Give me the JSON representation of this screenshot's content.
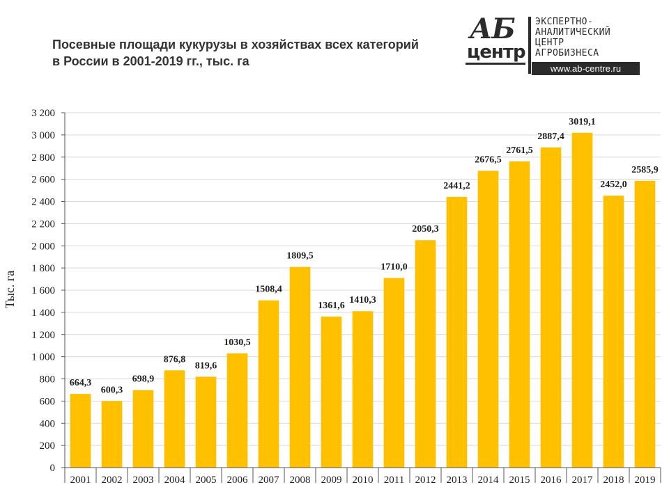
{
  "title_lines": [
    "Посевные площади кукурузы в хозяйствах всех категорий",
    "в России в 2001-2019 гг., тыс. га"
  ],
  "logo": {
    "mark_top": "АБ",
    "mark_bottom": "центр",
    "text_lines": [
      "ЭКСПЕРТНО-",
      "АНАЛИТИЧЕСКИЙ",
      "ЦЕНТР",
      "АГРОБИЗНЕСА"
    ],
    "url": "www.ab-centre.ru"
  },
  "colors": {
    "bar": "#FFC000",
    "grid": "#D9D9D9",
    "axis": "#555555",
    "text": "#222222"
  },
  "chart_data": {
    "type": "bar",
    "title": "Посевные площади кукурузы в хозяйствах всех категорий в России в 2001-2019 гг., тыс. га",
    "ylabel": "Тыс. га",
    "xlabel": "",
    "ylim": [
      0,
      3200
    ],
    "yticks": [
      0,
      200,
      400,
      600,
      800,
      1000,
      1200,
      1400,
      1600,
      1800,
      2000,
      2200,
      2400,
      2600,
      2800,
      3000,
      3200
    ],
    "ytick_labels": [
      "0",
      "200",
      "400",
      "600",
      "800",
      "1 000",
      "1 200",
      "1 400",
      "1 600",
      "1 800",
      "2 000",
      "2 200",
      "2 400",
      "2 600",
      "2 800",
      "3 000",
      "3 200"
    ],
    "grid": true,
    "categories": [
      "2001",
      "2002",
      "2003",
      "2004",
      "2005",
      "2006",
      "2007",
      "2008",
      "2009",
      "2010",
      "2011",
      "2012",
      "2013",
      "2014",
      "2015",
      "2016",
      "2017",
      "2018",
      "2019"
    ],
    "values": [
      664.3,
      600.3,
      698.9,
      876.8,
      819.6,
      1030.5,
      1508.4,
      1809.5,
      1361.6,
      1410.3,
      1710.0,
      2050.3,
      2441.2,
      2676.5,
      2761.5,
      2887.4,
      3019.1,
      2452.0,
      2585.9
    ],
    "value_labels": [
      "664,3",
      "600,3",
      "698,9",
      "876,8",
      "819,6",
      "1030,5",
      "1508,4",
      "1809,5",
      "1361,6",
      "1410,3",
      "1710,0",
      "2050,3",
      "2441,2",
      "2676,5",
      "2761,5",
      "2887,4",
      "3019,1",
      "2452,0",
      "2585,9"
    ]
  }
}
